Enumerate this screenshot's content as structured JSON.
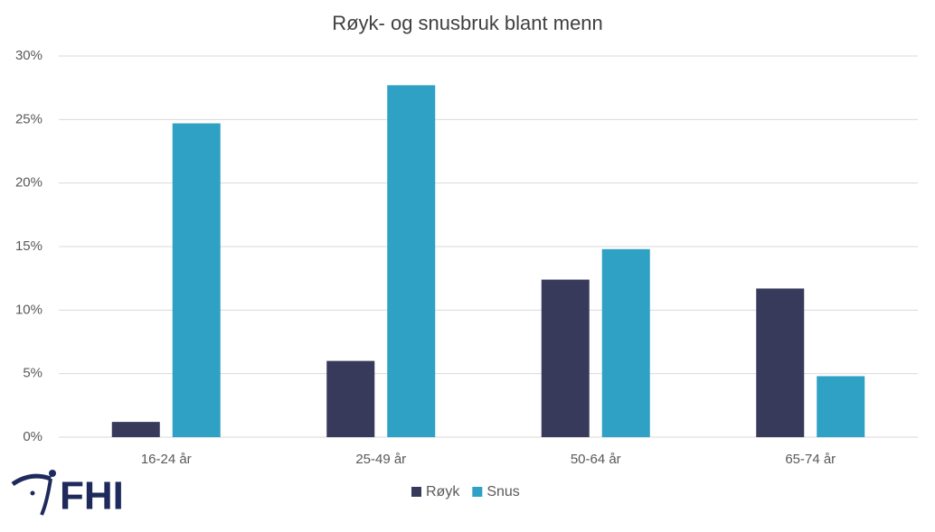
{
  "chart_data": {
    "type": "bar",
    "title": "Røyk- og snusbruk blant menn",
    "categories": [
      "16-24 år",
      "25-49 år",
      "50-64 år",
      "65-74 år"
    ],
    "series": [
      {
        "name": "Røyk",
        "color": "#383a5c",
        "values": [
          1.2,
          6.0,
          12.4,
          11.7
        ]
      },
      {
        "name": "Snus",
        "color": "#2ea1c4",
        "values": [
          24.7,
          27.7,
          14.8,
          4.8
        ]
      }
    ],
    "ylim": [
      0,
      30
    ],
    "yticks": [
      {
        "value": 0,
        "label": "0%"
      },
      {
        "value": 5,
        "label": "5%"
      },
      {
        "value": 10,
        "label": "10%"
      },
      {
        "value": 15,
        "label": "15%"
      },
      {
        "value": 20,
        "label": "20%"
      },
      {
        "value": 25,
        "label": "25%"
      },
      {
        "value": 30,
        "label": "30%"
      }
    ],
    "grid": true,
    "legend": "bottom"
  },
  "logo": {
    "text": "FHI"
  }
}
